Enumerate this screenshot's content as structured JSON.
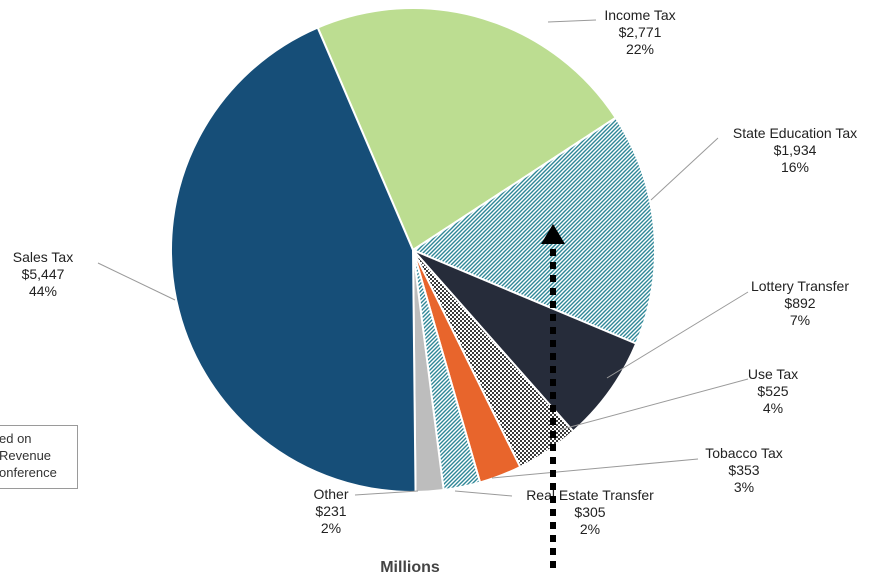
{
  "chart_data": {
    "type": "pie",
    "xlabel": "Millions",
    "slices": [
      {
        "label": "Income Tax",
        "value": 2771,
        "value_text": "$2,771",
        "percent": "22%",
        "color": "#bcdd91",
        "pattern": "none"
      },
      {
        "label": "State Education Tax",
        "value": 1934,
        "value_text": "$1,934",
        "percent": "16%",
        "color": "#3e8e9e",
        "pattern": "hatch"
      },
      {
        "label": "Lottery Transfer",
        "value": 892,
        "value_text": "$892",
        "percent": "7%",
        "color": "#262c3a",
        "pattern": "none"
      },
      {
        "label": "Use Tax",
        "value": 525,
        "value_text": "$525",
        "percent": "4%",
        "color": "#5a5a5a",
        "pattern": "checker"
      },
      {
        "label": "Tobacco Tax",
        "value": 353,
        "value_text": "$353",
        "percent": "3%",
        "color": "#e8652c",
        "pattern": "none"
      },
      {
        "label": "Real Estate Transfer",
        "value": 305,
        "value_text": "$305",
        "percent": "2%",
        "color": "#3e9aa8",
        "pattern": "hatch"
      },
      {
        "label": "Other",
        "value": 231,
        "value_text": "$231",
        "percent": "2%",
        "color": "#bdbdbd",
        "pattern": "none"
      },
      {
        "label": "Sales Tax",
        "value": 5447,
        "value_text": "$5,447",
        "percent": "44%",
        "color": "#164e78",
        "pattern": "none"
      }
    ]
  },
  "note": {
    "lines": [
      "ed on",
      "Revenue",
      "onference"
    ]
  },
  "arrow": {
    "style": "dotted",
    "color": "#000000",
    "direction": "up"
  }
}
